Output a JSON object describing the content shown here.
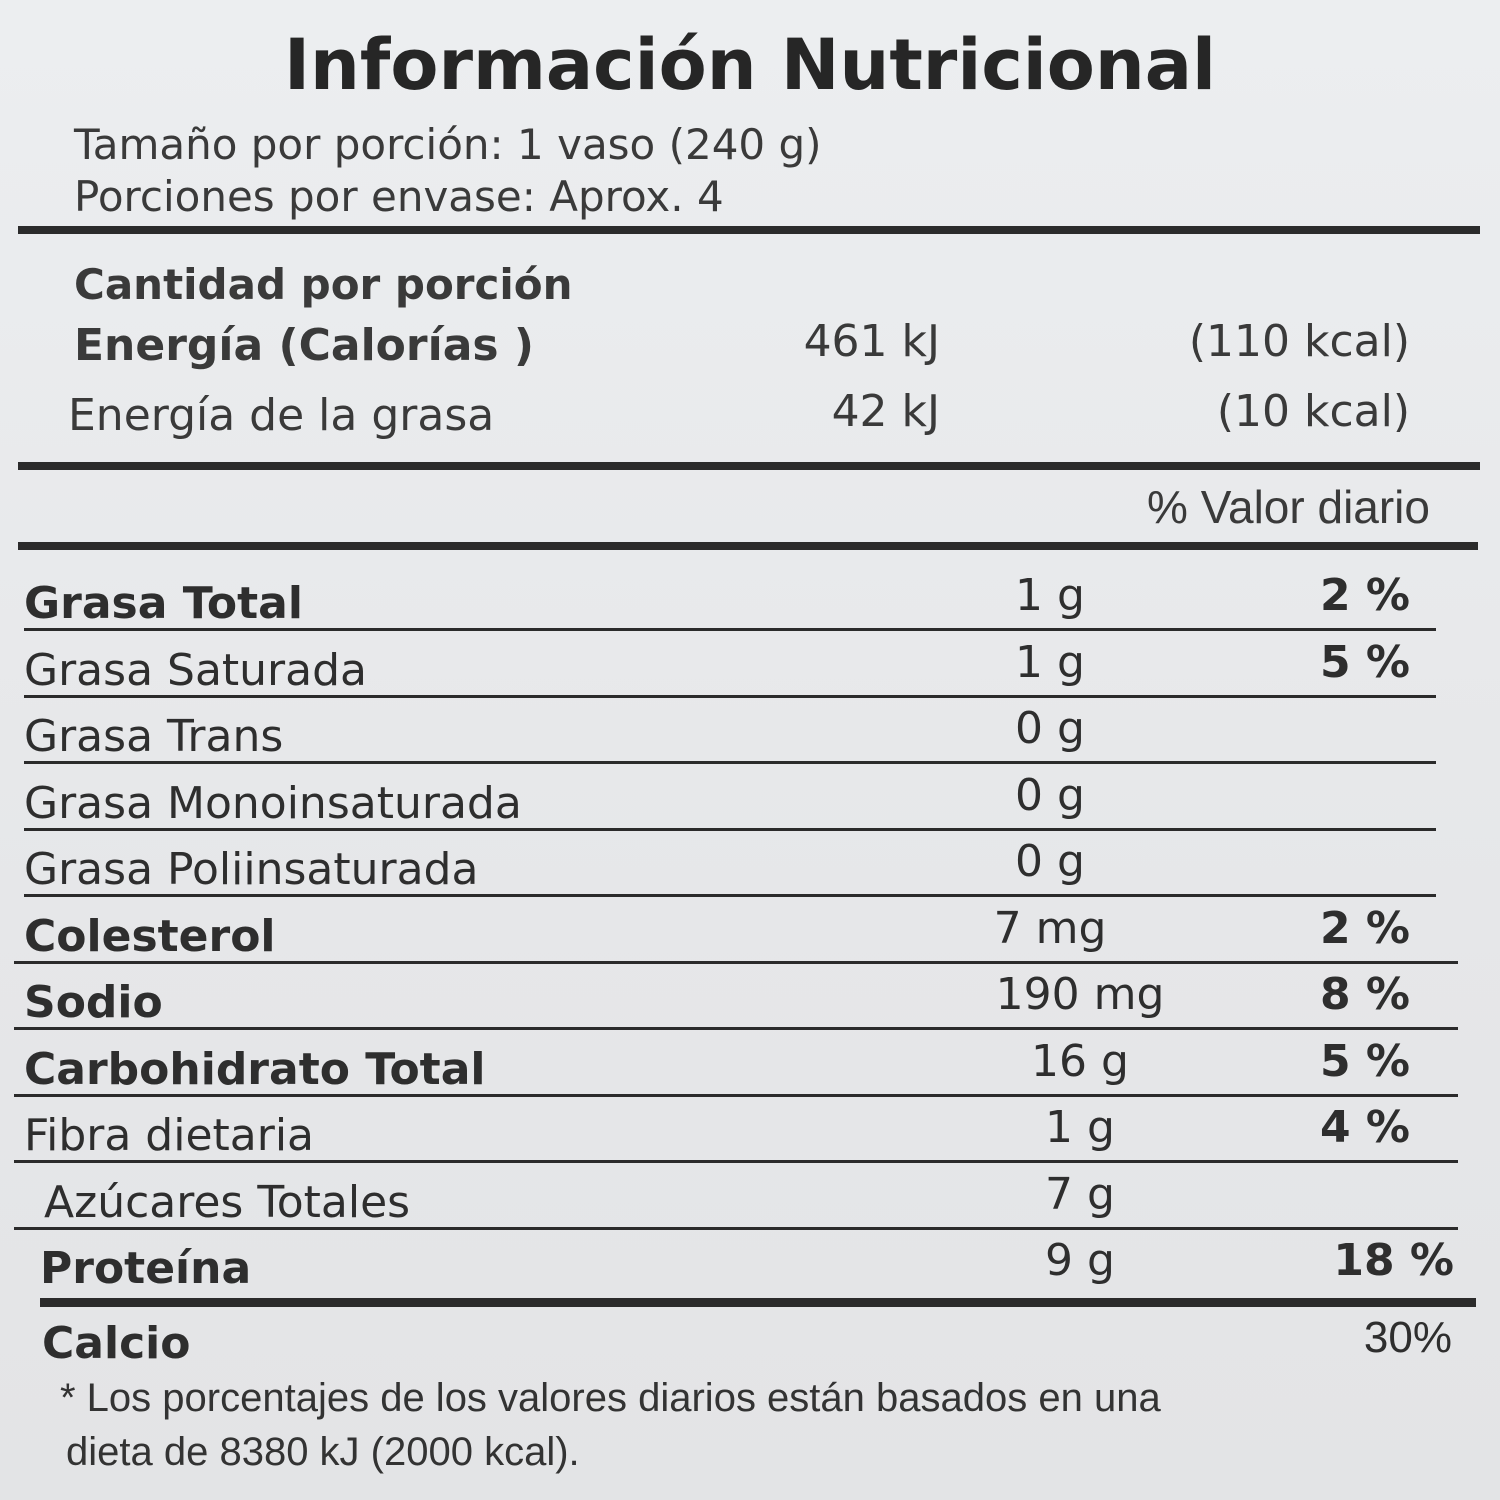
{
  "header": {
    "title": "Información Nutricional",
    "serving_size": "Tamaño por porción: 1 vaso (240 g)",
    "servings_per_container": "Porciones por envase: Aprox. 4"
  },
  "amount_header": "Cantidad por porción",
  "energy": [
    {
      "name": "Energía  (Calorías )",
      "kj": "461 kJ",
      "kcal": "(110 kcal)",
      "bold": true
    },
    {
      "name": "Energía de la grasa",
      "kj": "42 kJ",
      "kcal": "(10 kcal)",
      "bold": false
    }
  ],
  "dv_header": "% Valor diario",
  "nutrients": [
    {
      "name": "Grasa Total",
      "amount": "1 g",
      "dv": "2 %",
      "bold": true
    },
    {
      "name": "Grasa Saturada",
      "amount": "1 g",
      "dv": "5 %",
      "bold": false
    },
    {
      "name": "Grasa Trans",
      "amount": "0 g",
      "bold": false
    },
    {
      "name": "Grasa Monoinsaturada",
      "amount": "0 g",
      "bold": false
    },
    {
      "name": "Grasa Poliinsaturada",
      "amount": "0 g",
      "bold": false
    },
    {
      "name": "Colesterol",
      "amount": "7 mg",
      "dv": "2 %",
      "bold": true
    },
    {
      "name": "Sodio",
      "amount": "190 mg",
      "dv": "8 %",
      "bold": true
    },
    {
      "name": "Carbohidrato Total",
      "amount": "16 g",
      "dv": "5 %",
      "bold": true
    },
    {
      "name": "Fibra dietaria",
      "amount": "1 g",
      "dv": "4 %",
      "bold": false
    },
    {
      "name": "Azúcares Totales",
      "amount": "7 g",
      "bold": false
    },
    {
      "name": "Proteína",
      "amount": "9 g",
      "dv": "18 %",
      "bold": true
    }
  ],
  "calcium": {
    "name": "Calcio",
    "dv": "30%"
  },
  "footnote": [
    "* Los porcentajes de los valores diarios están basados en una",
    "dieta de 8380 kJ (2000 kcal)."
  ]
}
